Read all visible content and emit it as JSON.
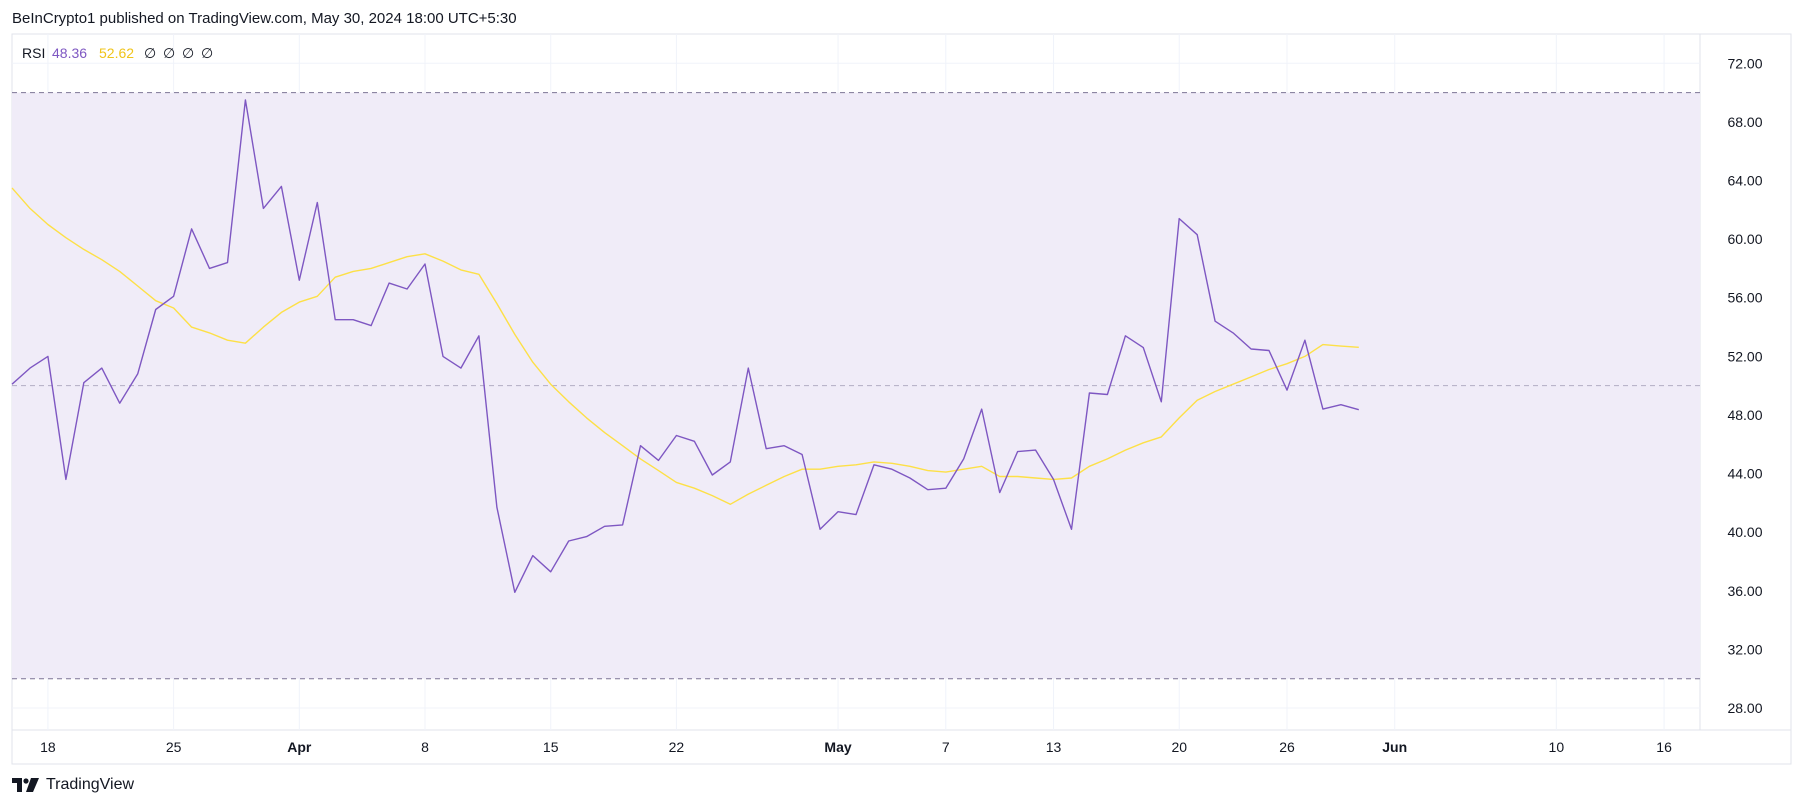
{
  "header": {
    "attribution": "BeInCrypto1 published on TradingView.com, May 30, 2024 18:00 UTC+5:30"
  },
  "legend": {
    "indicator": "RSI",
    "rsi_value": "48.36",
    "ma_value": "52.62",
    "extras": [
      "∅",
      "∅",
      "∅",
      "∅"
    ]
  },
  "footer": {
    "brand": "TradingView"
  },
  "colors": {
    "rsi_line": "#7e57c2",
    "ma_line": "#fde047",
    "band_fill": "#f0ecf8",
    "band_border": "#7c7595",
    "grid": "#f0f3fa",
    "rsi_value_text": "#7e57c2",
    "ma_value_text": "#f0c419"
  },
  "chart_data": {
    "type": "line",
    "title": "",
    "ylim": [
      26.5,
      74
    ],
    "y_ticks": [
      "72.00",
      "68.00",
      "64.00",
      "60.00",
      "56.00",
      "52.00",
      "48.00",
      "44.00",
      "40.00",
      "36.00",
      "32.00",
      "28.00"
    ],
    "y_tick_values": [
      72,
      68,
      64,
      60,
      56,
      52,
      48,
      44,
      40,
      36,
      32,
      28
    ],
    "x_range": [
      "2024-03-16",
      "2024-06-18"
    ],
    "x_ticks": [
      {
        "label": "18",
        "date": "2024-03-18",
        "bold": false
      },
      {
        "label": "25",
        "date": "2024-03-25",
        "bold": false
      },
      {
        "label": "Apr",
        "date": "2024-04-01",
        "bold": true
      },
      {
        "label": "8",
        "date": "2024-04-08",
        "bold": false
      },
      {
        "label": "15",
        "date": "2024-04-15",
        "bold": false
      },
      {
        "label": "22",
        "date": "2024-04-22",
        "bold": false
      },
      {
        "label": "May",
        "date": "2024-05-01",
        "bold": true
      },
      {
        "label": "7",
        "date": "2024-05-07",
        "bold": false
      },
      {
        "label": "13",
        "date": "2024-05-13",
        "bold": false
      },
      {
        "label": "20",
        "date": "2024-05-20",
        "bold": false
      },
      {
        "label": "26",
        "date": "2024-05-26",
        "bold": false
      },
      {
        "label": "Jun",
        "date": "2024-06-01",
        "bold": true
      },
      {
        "label": "10",
        "date": "2024-06-10",
        "bold": false
      },
      {
        "label": "16",
        "date": "2024-06-16",
        "bold": false
      }
    ],
    "bands": {
      "upper": 70,
      "middle": 50,
      "lower": 30
    },
    "series": [
      {
        "key": "rsi",
        "x": [
          "2024-03-16",
          "2024-03-17",
          "2024-03-18",
          "2024-03-19",
          "2024-03-20",
          "2024-03-21",
          "2024-03-22",
          "2024-03-23",
          "2024-03-24",
          "2024-03-25",
          "2024-03-26",
          "2024-03-27",
          "2024-03-28",
          "2024-03-29",
          "2024-03-30",
          "2024-03-31",
          "2024-04-01",
          "2024-04-02",
          "2024-04-03",
          "2024-04-04",
          "2024-04-05",
          "2024-04-06",
          "2024-04-07",
          "2024-04-08",
          "2024-04-09",
          "2024-04-10",
          "2024-04-11",
          "2024-04-12",
          "2024-04-13",
          "2024-04-14",
          "2024-04-15",
          "2024-04-16",
          "2024-04-17",
          "2024-04-18",
          "2024-04-19",
          "2024-04-20",
          "2024-04-21",
          "2024-04-22",
          "2024-04-23",
          "2024-04-24",
          "2024-04-25",
          "2024-04-26",
          "2024-04-27",
          "2024-04-28",
          "2024-04-29",
          "2024-04-30",
          "2024-05-01",
          "2024-05-02",
          "2024-05-03",
          "2024-05-04",
          "2024-05-05",
          "2024-05-06",
          "2024-05-07",
          "2024-05-08",
          "2024-05-09",
          "2024-05-10",
          "2024-05-11",
          "2024-05-12",
          "2024-05-13",
          "2024-05-14",
          "2024-05-15",
          "2024-05-16",
          "2024-05-17",
          "2024-05-18",
          "2024-05-19",
          "2024-05-20",
          "2024-05-21",
          "2024-05-22",
          "2024-05-23",
          "2024-05-24",
          "2024-05-25",
          "2024-05-26",
          "2024-05-27",
          "2024-05-28",
          "2024-05-29",
          "2024-05-30"
        ],
        "values": [
          50.1,
          51.2,
          52.0,
          43.6,
          50.2,
          51.2,
          48.8,
          50.8,
          55.2,
          56.1,
          60.7,
          58.0,
          58.4,
          69.5,
          62.1,
          63.6,
          57.2,
          62.5,
          54.5,
          54.5,
          54.1,
          57.0,
          56.6,
          58.3,
          52.0,
          51.2,
          53.4,
          41.7,
          35.9,
          38.4,
          37.3,
          39.4,
          39.7,
          40.4,
          40.5,
          45.9,
          44.9,
          46.6,
          46.2,
          43.9,
          44.8,
          51.2,
          45.7,
          45.9,
          45.3,
          40.2,
          41.4,
          41.2,
          44.6,
          44.3,
          43.7,
          42.9,
          43.0,
          45.0,
          48.4,
          42.7,
          45.5,
          45.6,
          43.6,
          40.2,
          49.5,
          49.4,
          53.4,
          52.6,
          48.9,
          61.4,
          60.3,
          54.4,
          53.6,
          52.5,
          52.4,
          49.7,
          53.1,
          48.4,
          48.7,
          48.36
        ]
      },
      {
        "key": "ma",
        "x": [
          "2024-03-16",
          "2024-03-17",
          "2024-03-18",
          "2024-03-19",
          "2024-03-20",
          "2024-03-21",
          "2024-03-22",
          "2024-03-23",
          "2024-03-24",
          "2024-03-25",
          "2024-03-26",
          "2024-03-27",
          "2024-03-28",
          "2024-03-29",
          "2024-03-30",
          "2024-03-31",
          "2024-04-01",
          "2024-04-02",
          "2024-04-03",
          "2024-04-04",
          "2024-04-05",
          "2024-04-06",
          "2024-04-07",
          "2024-04-08",
          "2024-04-09",
          "2024-04-10",
          "2024-04-11",
          "2024-04-12",
          "2024-04-13",
          "2024-04-14",
          "2024-04-15",
          "2024-04-16",
          "2024-04-17",
          "2024-04-18",
          "2024-04-19",
          "2024-04-20",
          "2024-04-21",
          "2024-04-22",
          "2024-04-23",
          "2024-04-24",
          "2024-04-25",
          "2024-04-26",
          "2024-04-27",
          "2024-04-28",
          "2024-04-29",
          "2024-04-30",
          "2024-05-01",
          "2024-05-02",
          "2024-05-03",
          "2024-05-04",
          "2024-05-05",
          "2024-05-06",
          "2024-05-07",
          "2024-05-08",
          "2024-05-09",
          "2024-05-10",
          "2024-05-11",
          "2024-05-12",
          "2024-05-13",
          "2024-05-14",
          "2024-05-15",
          "2024-05-16",
          "2024-05-17",
          "2024-05-18",
          "2024-05-19",
          "2024-05-20",
          "2024-05-21",
          "2024-05-22",
          "2024-05-23",
          "2024-05-24",
          "2024-05-25",
          "2024-05-26",
          "2024-05-27",
          "2024-05-28",
          "2024-05-29",
          "2024-05-30"
        ],
        "values": [
          63.5,
          62.1,
          61.0,
          60.1,
          59.3,
          58.6,
          57.8,
          56.8,
          55.8,
          55.3,
          54.0,
          53.6,
          53.1,
          52.9,
          54.0,
          55.0,
          55.7,
          56.1,
          57.4,
          57.8,
          58.0,
          58.4,
          58.8,
          59.0,
          58.5,
          57.9,
          57.6,
          55.6,
          53.5,
          51.6,
          50.1,
          48.9,
          47.8,
          46.8,
          45.9,
          45.0,
          44.2,
          43.4,
          43.0,
          42.5,
          41.9,
          42.6,
          43.2,
          43.8,
          44.3,
          44.3,
          44.5,
          44.6,
          44.8,
          44.7,
          44.5,
          44.2,
          44.1,
          44.3,
          44.5,
          43.8,
          43.8,
          43.7,
          43.6,
          43.7,
          44.5,
          45.0,
          45.6,
          46.1,
          46.5,
          47.8,
          49.0,
          49.6,
          50.1,
          50.6,
          51.1,
          51.5,
          52.0,
          52.8,
          52.7,
          52.62
        ]
      }
    ]
  }
}
